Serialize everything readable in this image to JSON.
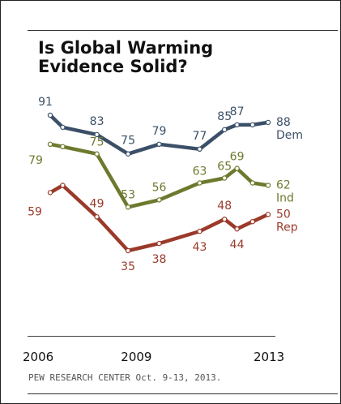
{
  "chart_data": {
    "type": "line",
    "title_lines": [
      "Is Global Warming",
      "Evidence Solid?"
    ],
    "x": [
      2006.0,
      2006.4,
      2007.5,
      2008.5,
      2009.5,
      2010.8,
      2011.6,
      2012.0,
      2012.5,
      2013.0
    ],
    "x_tick_labels": [
      "2006",
      "2009",
      "2013"
    ],
    "x_ticks": [
      2006,
      2009,
      2013
    ],
    "ylim": [
      30,
      95
    ],
    "grid": false,
    "legend": "end-of-line labels",
    "series": [
      {
        "name": "Dem",
        "color": "#3b5068",
        "values": [
          91,
          86,
          83,
          75,
          79,
          77,
          85,
          87,
          87,
          88
        ],
        "labels": [
          "91",
          null,
          "83",
          "75",
          "79",
          "77",
          "85",
          "87",
          null,
          "88"
        ]
      },
      {
        "name": "Ind",
        "color": "#6d7a2e",
        "values": [
          79,
          78,
          75,
          53,
          56,
          63,
          65,
          69,
          63,
          62
        ],
        "labels": [
          "79",
          null,
          "75",
          "53",
          "56",
          "63",
          "65",
          "69",
          null,
          "62"
        ]
      },
      {
        "name": "Rep",
        "color": "#9b3a2a",
        "values": [
          59,
          62,
          49,
          35,
          38,
          43,
          48,
          44,
          47,
          50
        ],
        "labels": [
          "59",
          null,
          "49",
          "35",
          "38",
          "43",
          "48",
          "44",
          null,
          "50"
        ]
      }
    ]
  },
  "source": "PEW RESEARCH CENTER Oct. 9-13, 2013."
}
